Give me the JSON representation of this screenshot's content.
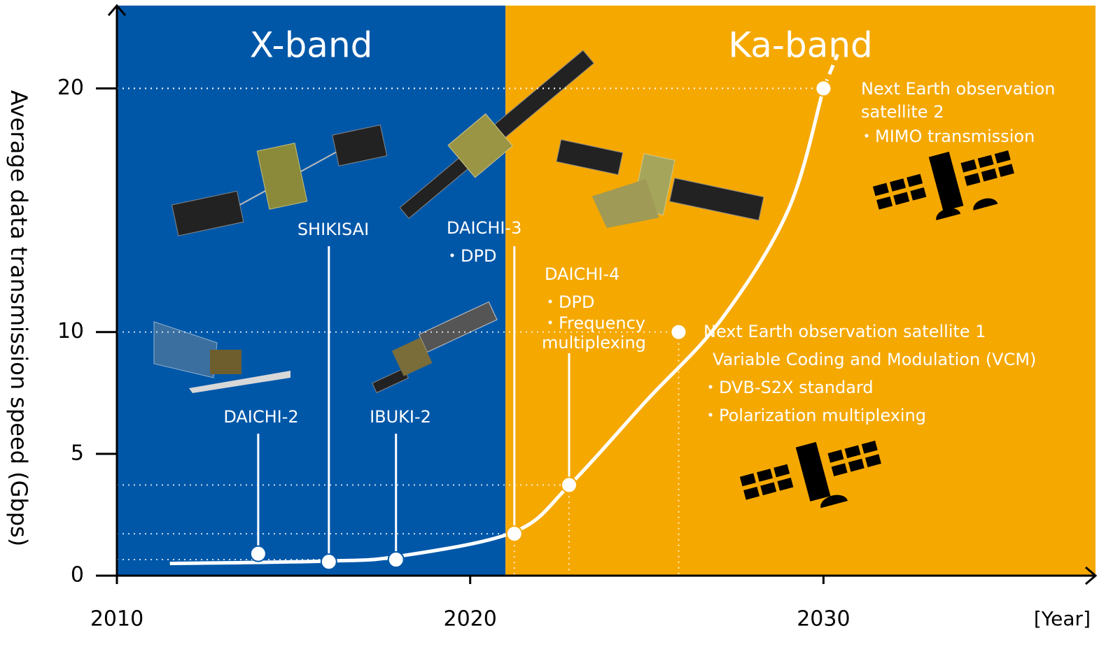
{
  "chart_data": {
    "type": "line",
    "ylabel": "Average data transmission speed (Gbps)",
    "xlabel": "[Year]",
    "xlim": [
      2010,
      2037.7
    ],
    "ylim": [
      0,
      23.4
    ],
    "xticks": [
      2010,
      2020,
      2030
    ],
    "yticks": [
      0,
      5,
      10,
      20
    ],
    "regions": [
      {
        "name": "X-band",
        "from": 2010,
        "to": 2021,
        "color": "#0057a8"
      },
      {
        "name": "Ka-band",
        "from": 2021,
        "to": 2037.7,
        "color": "#f5a800"
      }
    ],
    "points": [
      {
        "x": 2014,
        "value": 0.9,
        "labels": [
          "DAICHI-2"
        ]
      },
      {
        "x": 2016,
        "value": 0.57,
        "labels": [
          "SHIKISAI"
        ]
      },
      {
        "x": 2017.9,
        "value": 0.66,
        "labels": [
          "IBUKI-2"
        ]
      },
      {
        "x": 2021.25,
        "value": 1.72,
        "labels": [
          "DAICHI-3",
          "・DPD"
        ]
      },
      {
        "x": 2022.8,
        "value": 3.72,
        "labels": [
          "DAICHI-4",
          "・DPD",
          "・Frequency",
          "multiplexing"
        ]
      },
      {
        "x": 2025.9,
        "value": 10,
        "labels": [
          "Next Earth observation satellite 1",
          "Variable Coding and Modulation (VCM)",
          "・DVB-S2X standard",
          "・Polarization multiplexing"
        ]
      },
      {
        "x": 2030,
        "value": 20,
        "labels": [
          "Next Earth observation",
          "satellite 2",
          "・MIMO transmission"
        ]
      }
    ],
    "trend": {
      "x": [
        2011.5,
        2016,
        2018,
        2021.25,
        2022.8,
        2025,
        2027.1,
        2029,
        2030
      ],
      "values": [
        0.5,
        0.6,
        0.8,
        1.8,
        3.7,
        7.2,
        10.5,
        15,
        20
      ]
    },
    "trend_dashed": {
      "x": [
        2030,
        2030.4
      ],
      "values": [
        20,
        21.4
      ]
    }
  }
}
